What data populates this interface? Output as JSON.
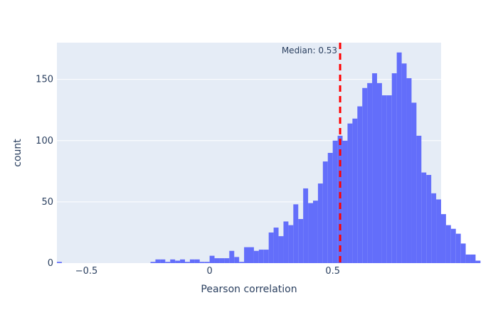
{
  "chart_data": {
    "type": "bar",
    "subtype": "histogram",
    "xlabel": "Pearson correlation",
    "ylabel": "count",
    "xlim": [
      -0.62,
      0.94
    ],
    "ylim": [
      0,
      180
    ],
    "bin_start": -0.62,
    "bin_width": 0.02,
    "counts": [
      1,
      0,
      0,
      0,
      0,
      0,
      0,
      0,
      0,
      0,
      0,
      0,
      0,
      0,
      0,
      0,
      0,
      0,
      0,
      1,
      3,
      3,
      1,
      3,
      2,
      3,
      1,
      3,
      3,
      1,
      1,
      6,
      4,
      4,
      4,
      10,
      5,
      1,
      13,
      13,
      10,
      11,
      11,
      25,
      29,
      22,
      34,
      31,
      48,
      36,
      61,
      49,
      51,
      65,
      83,
      90,
      100,
      104,
      100,
      114,
      118,
      128,
      143,
      147,
      155,
      147,
      137,
      137,
      155,
      172,
      163,
      151,
      131,
      104,
      74,
      72,
      57,
      52,
      40,
      31,
      28,
      24,
      16,
      7,
      7,
      2
    ],
    "x_ticks": [
      -0.5,
      0,
      0.5
    ],
    "x_tick_labels": [
      "−0.5",
      "0",
      "0.5"
    ],
    "y_ticks": [
      0,
      50,
      100,
      150
    ],
    "y_tick_labels": [
      "0",
      "50",
      "100",
      "150"
    ],
    "bar_color": "#636efa",
    "plot_bg": "#e5ecf6",
    "grid": true,
    "median_line": {
      "x": 0.53,
      "label": "Median: 0.53",
      "color": "#ff0000",
      "dash": "dashed"
    }
  }
}
